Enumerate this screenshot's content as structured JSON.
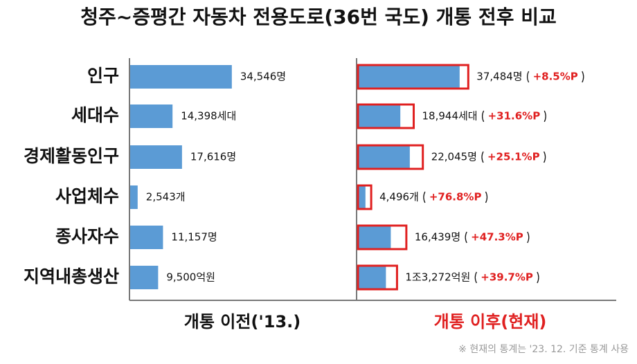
{
  "chart_data": {
    "type": "bar",
    "title": "청주~증평간 자동차 전용도로(36번 국도) 개통 전후 비교",
    "categories": [
      "인구",
      "세대수",
      "경제활동인구",
      "사업체수",
      "종사자수",
      "지역내총생산"
    ],
    "series": [
      {
        "name": "개통 이전('13.)",
        "color": "#5b9bd5",
        "values": [
          34546,
          14398,
          17616,
          2543,
          11157,
          9500
        ],
        "value_labels": [
          "34,546명",
          "14,398세대",
          "17,616명",
          "2,543개",
          "11,157명",
          "9,500억원"
        ]
      },
      {
        "name": "개통 이후(현재)",
        "color": "#e02020",
        "values": [
          37484,
          18944,
          22045,
          4496,
          16439,
          13272
        ],
        "value_labels": [
          "37,484명",
          "18,944세대",
          "22,045명",
          "4,496개",
          "16,439명",
          "1조3,272억원"
        ],
        "changes": [
          8.5,
          31.6,
          25.1,
          76.8,
          47.3,
          39.7
        ],
        "change_labels": [
          "+8.5%P",
          "+31.6%P",
          "+25.1%P",
          "+76.8%P",
          "+47.3%P",
          "+39.7%P"
        ]
      }
    ],
    "xlim": [
      0,
      40000
    ],
    "note": "※ 현재의 통계는 '23. 12. 기준 통계 사용"
  }
}
